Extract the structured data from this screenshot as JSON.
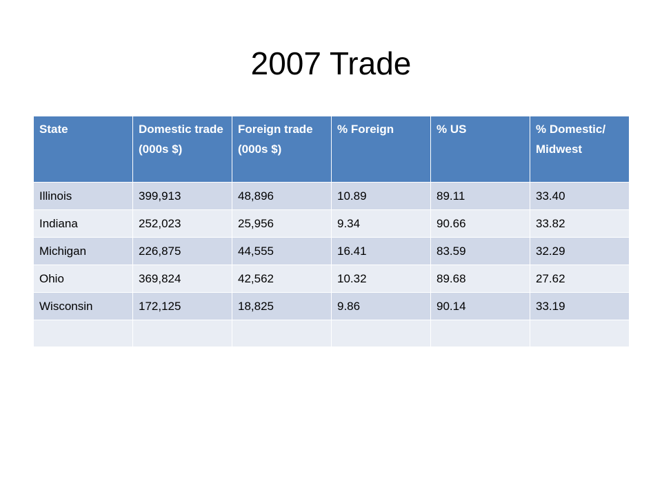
{
  "header": {
    "title": "2007 Trade"
  },
  "table": {
    "columns": [
      "State",
      "Domestic trade (000s $)",
      "Foreign trade (000s $)",
      "% Foreign",
      "% US",
      "% Domestic/ Midwest"
    ],
    "rows": [
      [
        "Illinois",
        "399,913",
        "48,896",
        "10.89",
        "89.11",
        "33.40"
      ],
      [
        "Indiana",
        "252,023",
        "25,956",
        "9.34",
        "90.66",
        "33.82"
      ],
      [
        "Michigan",
        "226,875",
        "44,555",
        "16.41",
        "83.59",
        "32.29"
      ],
      [
        "Ohio",
        "369,824",
        "42,562",
        "10.32",
        "89.68",
        "27.62"
      ],
      [
        "Wisconsin",
        "172,125",
        "18,825",
        "9.86",
        "90.14",
        "33.19"
      ]
    ]
  }
}
